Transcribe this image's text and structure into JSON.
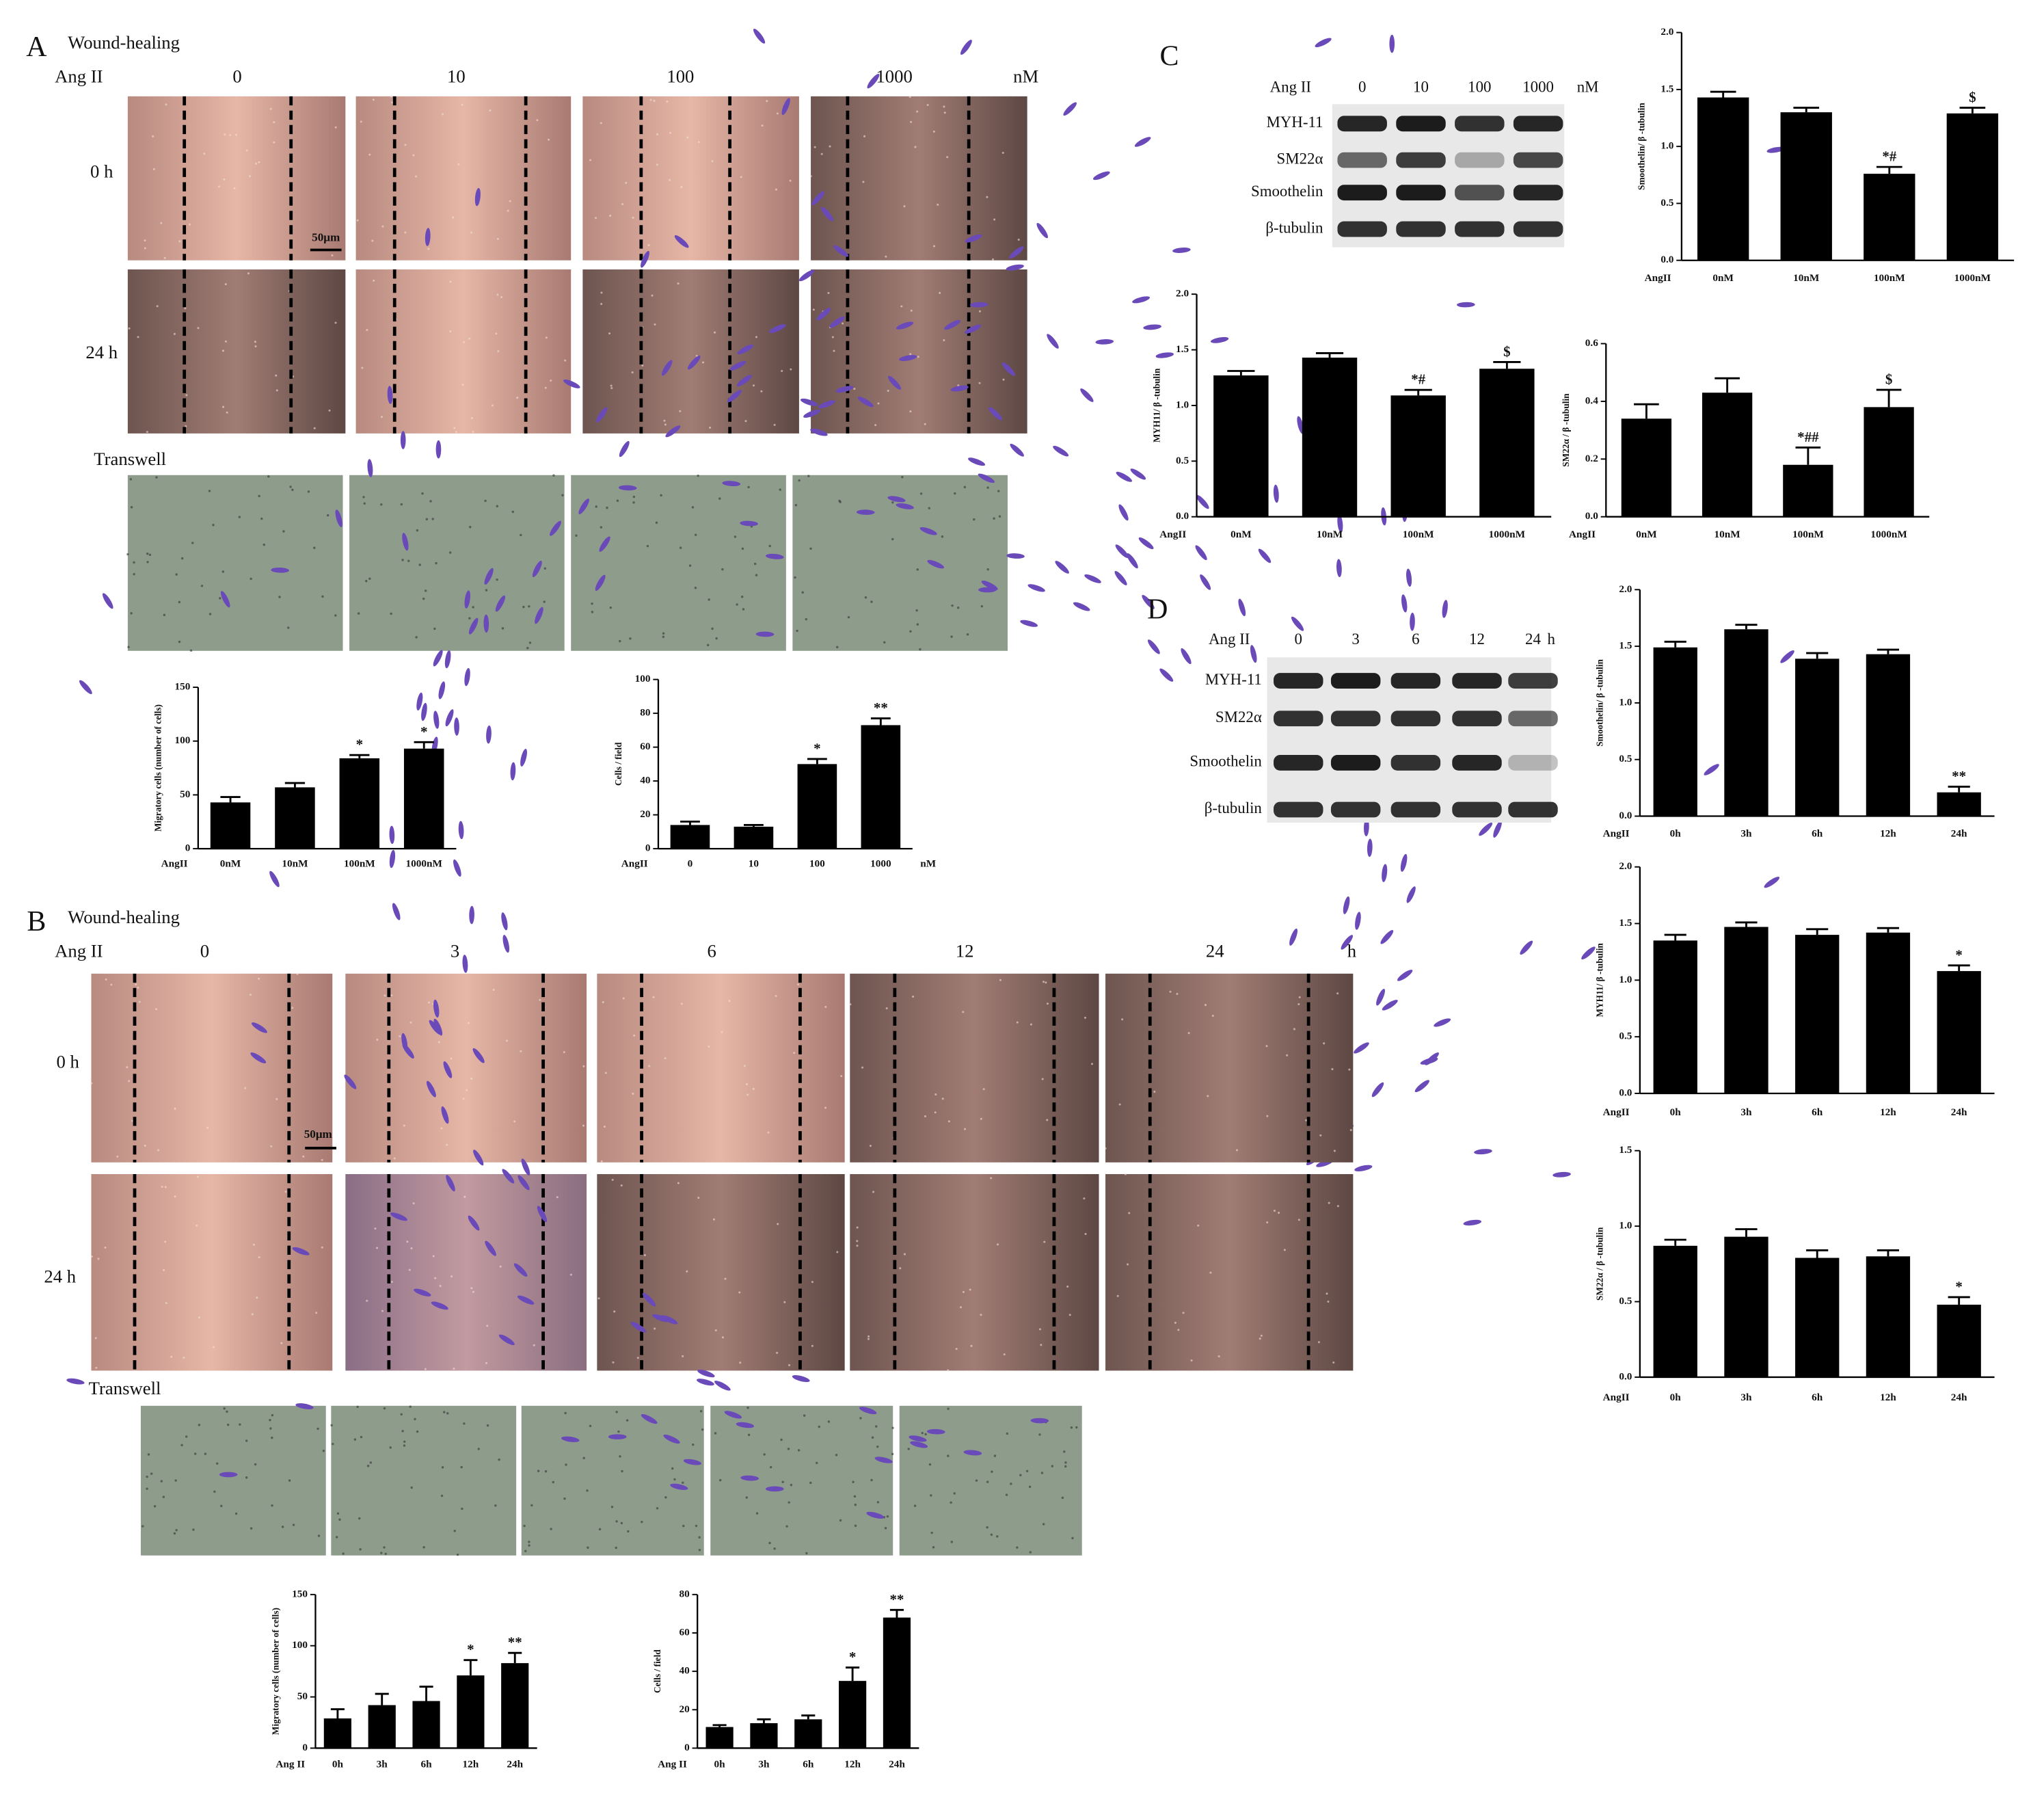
{
  "figure": {
    "A": {
      "label": "A",
      "title": "Wound-healing",
      "treatment": "Ang II",
      "doses": [
        "0",
        "10",
        "100",
        "1000"
      ],
      "unit": "nM",
      "times": [
        "0 h",
        "24 h"
      ],
      "scale_bar": "50μm",
      "transwell": "Transwell"
    },
    "B": {
      "label": "B",
      "title": "Wound-healing",
      "treatment": "Ang II",
      "doses": [
        "0",
        "3",
        "6",
        "12",
        "24"
      ],
      "unit": "h",
      "times": [
        "0 h",
        "24 h"
      ],
      "scale_bar": "50μm",
      "transwell": "Transwell"
    },
    "C": {
      "label": "C",
      "treatment": "Ang II",
      "lanes": [
        "0",
        "10",
        "100",
        "1000"
      ],
      "unit": "nM",
      "rows": [
        "MYH-11",
        "SM22α",
        "Smoothelin",
        "β-tubulin"
      ]
    },
    "D": {
      "label": "D",
      "treatment": "Ang II",
      "lanes": [
        "0",
        "3",
        "6",
        "12",
        "24"
      ],
      "unit": "h",
      "rows": [
        "MYH-11",
        "SM22α",
        "Smoothelin",
        "β-tubulin"
      ]
    }
  },
  "chart_data": [
    {
      "type": "bar",
      "ylabel": "Migratory cells (number of cells)",
      "x_prefix": "AngII",
      "categories": [
        "0nM",
        "10nM",
        "100nM",
        "1000nM"
      ],
      "values": [
        43,
        57,
        84,
        93
      ],
      "errors": [
        5,
        4,
        3,
        6
      ],
      "annotations": [
        null,
        null,
        "*",
        "*"
      ],
      "ylim": [
        0,
        150
      ],
      "yticks": [
        0,
        50,
        100,
        150
      ],
      "color": "#000000"
    },
    {
      "type": "bar",
      "ylabel": "Cells / field",
      "x_prefix": "AngII",
      "x_unit": "nM",
      "categories": [
        "0",
        "10",
        "100",
        "1000"
      ],
      "values": [
        14,
        13,
        50,
        73
      ],
      "errors": [
        2,
        1,
        3,
        4
      ],
      "annotations": [
        null,
        null,
        "*",
        "**"
      ],
      "ylim": [
        0,
        100
      ],
      "yticks": [
        0,
        20,
        40,
        60,
        80,
        100
      ],
      "color": "#000000"
    },
    {
      "type": "bar",
      "ylabel": "Migratory cells (number of cells)",
      "x_prefix": "Ang II",
      "categories": [
        "0h",
        "3h",
        "6h",
        "12h",
        "24h"
      ],
      "values": [
        29,
        42,
        46,
        71,
        83
      ],
      "errors": [
        9,
        11,
        14,
        15,
        10
      ],
      "annotations": [
        null,
        null,
        null,
        "*",
        "**"
      ],
      "ylim": [
        0,
        150
      ],
      "yticks": [
        0,
        50,
        100,
        150
      ],
      "color": "#000000"
    },
    {
      "type": "bar",
      "ylabel": "Cells / field",
      "x_prefix": "Ang II",
      "categories": [
        "0h",
        "3h",
        "6h",
        "12h",
        "24h"
      ],
      "values": [
        11,
        13,
        15,
        35,
        68
      ],
      "errors": [
        1,
        2,
        2,
        7,
        4
      ],
      "annotations": [
        null,
        null,
        null,
        "*",
        "**"
      ],
      "ylim": [
        0,
        80
      ],
      "yticks": [
        0,
        20,
        40,
        60,
        80
      ],
      "color": "#000000"
    },
    {
      "type": "bar",
      "ylabel": "Smoothelin/ β -tubulin",
      "x_prefix": "AngII",
      "categories": [
        "0nM",
        "10nM",
        "100nM",
        "1000nM"
      ],
      "values": [
        1.43,
        1.3,
        0.76,
        1.29
      ],
      "errors": [
        0.05,
        0.04,
        0.06,
        0.05
      ],
      "annotations": [
        null,
        null,
        "*#",
        "$"
      ],
      "ylim": [
        0,
        2
      ],
      "yticks": [
        {
          "value": 0,
          "label": "0.0"
        },
        0.5,
        {
          "value": 1,
          "label": "1.0"
        },
        1.5,
        {
          "value": 2,
          "label": "2.0"
        }
      ],
      "color": "#000000"
    },
    {
      "type": "bar",
      "ylabel": "MYH11/ β -tubulin",
      "x_prefix": "AngII",
      "categories": [
        "0nM",
        "10nM",
        "100nM",
        "1000nM"
      ],
      "values": [
        1.27,
        1.43,
        1.09,
        1.33
      ],
      "errors": [
        0.04,
        0.04,
        0.05,
        0.06
      ],
      "annotations": [
        null,
        null,
        "*#",
        "$"
      ],
      "ylim": [
        0,
        2
      ],
      "yticks": [
        {
          "value": 0,
          "label": "0.0"
        },
        0.5,
        {
          "value": 1,
          "label": "1.0"
        },
        1.5,
        {
          "value": 2,
          "label": "2.0"
        }
      ],
      "color": "#000000"
    },
    {
      "type": "bar",
      "ylabel": "SM22α / β -tubulin",
      "x_prefix": "AngII",
      "categories": [
        "0nM",
        "10nM",
        "100nM",
        "1000nM"
      ],
      "values": [
        0.34,
        0.43,
        0.18,
        0.38
      ],
      "errors": [
        0.05,
        0.05,
        0.06,
        0.06
      ],
      "annotations": [
        null,
        null,
        "*##",
        "$"
      ],
      "ylim": [
        0,
        0.6
      ],
      "yticks": [
        {
          "value": 0,
          "label": "0.0"
        },
        0.2,
        0.4,
        0.6
      ],
      "color": "#000000"
    },
    {
      "type": "bar",
      "ylabel": "Smoothelin/ β -tubulin",
      "x_prefix": "AngII",
      "categories": [
        "0h",
        "3h",
        "6h",
        "12h",
        "24h"
      ],
      "values": [
        1.49,
        1.65,
        1.39,
        1.43,
        0.21
      ],
      "errors": [
        0.05,
        0.04,
        0.05,
        0.04,
        0.05
      ],
      "annotations": [
        null,
        null,
        null,
        null,
        "**"
      ],
      "ylim": [
        0,
        2
      ],
      "yticks": [
        {
          "value": 0,
          "label": "0.0"
        },
        0.5,
        {
          "value": 1,
          "label": "1.0"
        },
        1.5,
        {
          "value": 2,
          "label": "2.0"
        }
      ],
      "color": "#000000"
    },
    {
      "type": "bar",
      "ylabel": "MYH11/ β -tubulin",
      "x_prefix": "AngII",
      "categories": [
        "0h",
        "3h",
        "6h",
        "12h",
        "24h"
      ],
      "values": [
        1.35,
        1.47,
        1.4,
        1.42,
        1.08
      ],
      "errors": [
        0.05,
        0.04,
        0.05,
        0.04,
        0.05
      ],
      "annotations": [
        null,
        null,
        null,
        null,
        "*"
      ],
      "ylim": [
        0,
        2
      ],
      "yticks": [
        {
          "value": 0,
          "label": "0.0"
        },
        0.5,
        {
          "value": 1,
          "label": "1.0"
        },
        1.5,
        {
          "value": 2,
          "label": "2.0"
        }
      ],
      "color": "#000000"
    },
    {
      "type": "bar",
      "ylabel": "SM22α / β -tubulin",
      "x_prefix": "AngII",
      "categories": [
        "0h",
        "3h",
        "6h",
        "12h",
        "24h"
      ],
      "values": [
        0.87,
        0.93,
        0.79,
        0.8,
        0.48
      ],
      "errors": [
        0.04,
        0.05,
        0.05,
        0.04,
        0.05
      ],
      "annotations": [
        null,
        null,
        null,
        null,
        "*"
      ],
      "ylim": [
        0,
        1.5
      ],
      "yticks": [
        {
          "value": 0,
          "label": "0.0"
        },
        0.5,
        {
          "value": 1,
          "label": "1.0"
        },
        1.5
      ],
      "color": "#000000"
    }
  ]
}
